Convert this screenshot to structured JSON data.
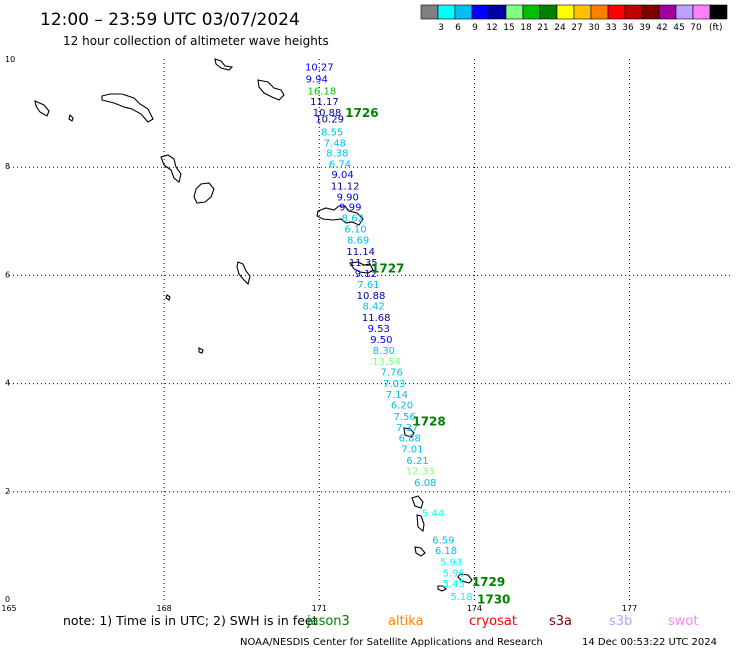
{
  "header": {
    "title": "12:00 – 23:59 UTC 03/07/2024",
    "subtitle": "12 hour collection of altimeter wave heights"
  },
  "colorbar": {
    "colors": [
      "#808080",
      "#00ffff",
      "#00c0f0",
      "#0000ff",
      "#0000a0",
      "#80ff80",
      "#00c000",
      "#008000",
      "#ffff00",
      "#ffc000",
      "#ff8000",
      "#ff0000",
      "#c00000",
      "#800000",
      "#a000a0",
      "#c0a0ff",
      "#ff80ff",
      "#000000"
    ],
    "labels": [
      "3",
      "6",
      "9",
      "12",
      "15",
      "18",
      "21",
      "24",
      "27",
      "30",
      "33",
      "36",
      "39",
      "42",
      "45",
      "70"
    ],
    "unit": "(ft)"
  },
  "chart_data": {
    "type": "scatter",
    "xlim": [
      165,
      179
    ],
    "ylim": [
      0,
      10
    ],
    "x_ticks": [
      "165",
      "168",
      "171",
      "174",
      "177"
    ],
    "y_ticks": [
      "0",
      "2",
      "4",
      "6",
      "8",
      "10"
    ],
    "grid": true,
    "points": [
      {
        "label": "10.27",
        "x": 171.0,
        "y": 9.86,
        "color": "#0000ff"
      },
      {
        "label": "9.94",
        "x": 170.95,
        "y": 9.64,
        "color": "#0000ff"
      },
      {
        "label": "16.18",
        "x": 171.05,
        "y": 9.42,
        "color": "#00c000"
      },
      {
        "label": "11.17",
        "x": 171.1,
        "y": 9.22,
        "color": "#0000a0"
      },
      {
        "label": "10.88",
        "x": 171.15,
        "y": 9.02,
        "color": "#0000a0"
      },
      {
        "label": "10.29",
        "x": 171.2,
        "y": 8.9,
        "color": "#0000a0"
      },
      {
        "label": "8.55",
        "x": 171.25,
        "y": 8.66,
        "color": "#00c0f0"
      },
      {
        "label": "7.48",
        "x": 171.3,
        "y": 8.46,
        "color": "#00c0f0"
      },
      {
        "label": "8.38",
        "x": 171.35,
        "y": 8.27,
        "color": "#00c0f0"
      },
      {
        "label": "6.74",
        "x": 171.4,
        "y": 8.07,
        "color": "#00c0f0"
      },
      {
        "label": "9.04",
        "x": 171.45,
        "y": 7.87,
        "color": "#0000ff"
      },
      {
        "label": "11.12",
        "x": 171.5,
        "y": 7.66,
        "color": "#0000a0"
      },
      {
        "label": "9.90",
        "x": 171.55,
        "y": 7.46,
        "color": "#0000ff"
      },
      {
        "label": "9.99",
        "x": 171.6,
        "y": 7.27,
        "color": "#0000ff"
      },
      {
        "label": "8.62",
        "x": 171.65,
        "y": 7.07,
        "color": "#00c0f0"
      },
      {
        "label": "6.10",
        "x": 171.7,
        "y": 6.87,
        "color": "#00c0f0"
      },
      {
        "label": "8.69",
        "x": 171.75,
        "y": 6.66,
        "color": "#00c0f0"
      },
      {
        "label": "11.14",
        "x": 171.8,
        "y": 6.45,
        "color": "#0000a0"
      },
      {
        "label": "11.35",
        "x": 171.85,
        "y": 6.25,
        "color": "#0000a0"
      },
      {
        "label": "9.12",
        "x": 171.9,
        "y": 6.04,
        "color": "#0000ff"
      },
      {
        "label": "7.61",
        "x": 171.95,
        "y": 5.84,
        "color": "#00c0f0"
      },
      {
        "label": "10.88",
        "x": 172.0,
        "y": 5.64,
        "color": "#0000a0"
      },
      {
        "label": "8.42",
        "x": 172.05,
        "y": 5.44,
        "color": "#00c0f0"
      },
      {
        "label": "11.68",
        "x": 172.1,
        "y": 5.23,
        "color": "#0000a0"
      },
      {
        "label": "9.53",
        "x": 172.15,
        "y": 5.03,
        "color": "#0000ff"
      },
      {
        "label": "9.50",
        "x": 172.2,
        "y": 4.82,
        "color": "#0000ff"
      },
      {
        "label": "8.30",
        "x": 172.25,
        "y": 4.62,
        "color": "#00c0f0"
      },
      {
        "label": "13.54",
        "x": 172.3,
        "y": 4.42,
        "color": "#80ff80"
      },
      {
        "label": "7.76",
        "x": 172.4,
        "y": 4.22,
        "color": "#00c0f0"
      },
      {
        "label": "7.03",
        "x": 172.45,
        "y": 4.01,
        "color": "#00c0f0"
      },
      {
        "label": "7.14",
        "x": 172.5,
        "y": 3.81,
        "color": "#00c0f0"
      },
      {
        "label": "6.20",
        "x": 172.6,
        "y": 3.61,
        "color": "#00c0f0"
      },
      {
        "label": "7.56",
        "x": 172.65,
        "y": 3.4,
        "color": "#00c0f0"
      },
      {
        "label": "7.37",
        "x": 172.7,
        "y": 3.2,
        "color": "#00c0f0"
      },
      {
        "label": "6.88",
        "x": 172.75,
        "y": 3.0,
        "color": "#00c0f0"
      },
      {
        "label": "7.01",
        "x": 172.8,
        "y": 2.8,
        "color": "#00c0f0"
      },
      {
        "label": "6.21",
        "x": 172.9,
        "y": 2.59,
        "color": "#00c0f0"
      },
      {
        "label": "12.33",
        "x": 172.95,
        "y": 2.39,
        "color": "#80ff80"
      },
      {
        "label": "6.08",
        "x": 173.05,
        "y": 2.18,
        "color": "#00c0f0"
      },
      {
        "label": "5.44",
        "x": 173.2,
        "y": 1.62,
        "color": "#00ffff"
      },
      {
        "label": "6.59",
        "x": 173.4,
        "y": 1.12,
        "color": "#00c0f0"
      },
      {
        "label": "6.18",
        "x": 173.45,
        "y": 0.92,
        "color": "#00c0f0"
      },
      {
        "label": "5.93",
        "x": 173.55,
        "y": 0.71,
        "color": "#00ffff"
      },
      {
        "label": "5.96",
        "x": 173.6,
        "y": 0.51,
        "color": "#00ffff"
      },
      {
        "label": "5.45",
        "x": 173.6,
        "y": 0.31,
        "color": "#00ffff"
      },
      {
        "label": "5.18",
        "x": 173.75,
        "y": 0.07,
        "color": "#00ffff"
      }
    ],
    "time_labels": [
      {
        "label": "1726",
        "x": 171.5,
        "y": 9.0
      },
      {
        "label": "1727",
        "x": 172.0,
        "y": 6.13
      },
      {
        "label": "1728",
        "x": 172.8,
        "y": 3.3
      },
      {
        "label": "1729",
        "x": 173.95,
        "y": 0.33
      },
      {
        "label": "1730",
        "x": 174.05,
        "y": 0.01
      }
    ]
  },
  "footer": {
    "note": "note: 1) Time is in UTC; 2) SWH is in feet",
    "satellites": [
      {
        "name": "jason3",
        "color": "#008000"
      },
      {
        "name": "altika",
        "color": "#ff8000"
      },
      {
        "name": "cryosat",
        "color": "#ff0000"
      },
      {
        "name": "s3a",
        "color": "#800000"
      },
      {
        "name": "s3b",
        "color": "#c0a0ff"
      },
      {
        "name": "swot",
        "color": "#ff80ff"
      }
    ],
    "credit": "NOAA/NESDIS Center for Satellite Applications and Research",
    "timestamp": "14 Dec 00:53:22 UTC 2024"
  }
}
